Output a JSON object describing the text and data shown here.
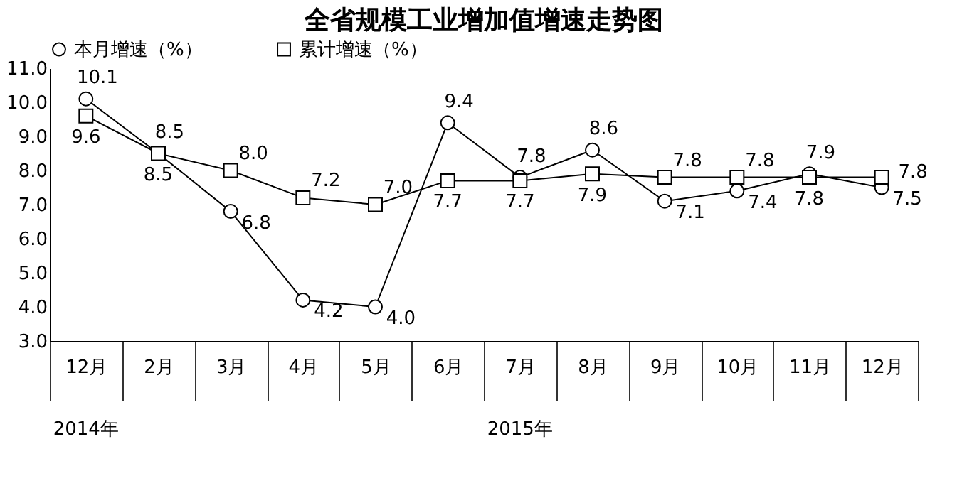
{
  "chart_data": {
    "type": "line",
    "title": "全省规模工业增加值增速走势图",
    "categories": [
      "12月",
      "2月",
      "3月",
      "4月",
      "5月",
      "6月",
      "7月",
      "8月",
      "9月",
      "10月",
      "11月",
      "12月"
    ],
    "series": [
      {
        "name": "本月增速（%）",
        "color": "#000000",
        "marker": "circle",
        "values": [
          10.1,
          8.5,
          6.8,
          4.2,
          4.0,
          9.4,
          7.8,
          8.6,
          7.1,
          7.4,
          7.9,
          7.5
        ],
        "value_labels": [
          "10.1",
          "8.5",
          "6.8",
          "4.2",
          "4.0",
          "9.4",
          "7.8",
          "8.6",
          "7.1",
          "7.4",
          "7.9",
          "7.5"
        ]
      },
      {
        "name": "累计增速（%）",
        "color": "#000000",
        "marker": "square",
        "values": [
          9.6,
          8.5,
          8.0,
          7.2,
          7.0,
          7.7,
          7.7,
          7.9,
          7.8,
          7.8,
          7.8,
          7.8
        ],
        "value_labels": [
          "9.6",
          "8.5",
          "8.0",
          "7.2",
          "7.0",
          "7.7",
          "7.7",
          "7.9",
          "7.8",
          "7.8",
          "7.8",
          "7.8"
        ]
      }
    ],
    "ylim": [
      3,
      11
    ],
    "yticks": [
      {
        "value": 3,
        "label": "3.0"
      },
      {
        "value": 4,
        "label": "4.0"
      },
      {
        "value": 5,
        "label": "5.0"
      },
      {
        "value": 6,
        "label": "6.0"
      },
      {
        "value": 7,
        "label": "7.0"
      },
      {
        "value": 8,
        "label": "8.0"
      },
      {
        "value": 9,
        "label": "9.0"
      },
      {
        "value": 10,
        "label": "10.0"
      },
      {
        "value": 11,
        "label": "11.0"
      }
    ],
    "annotations": [
      "2014年",
      "2015年"
    ],
    "legend": "top",
    "line_style": "solid"
  }
}
